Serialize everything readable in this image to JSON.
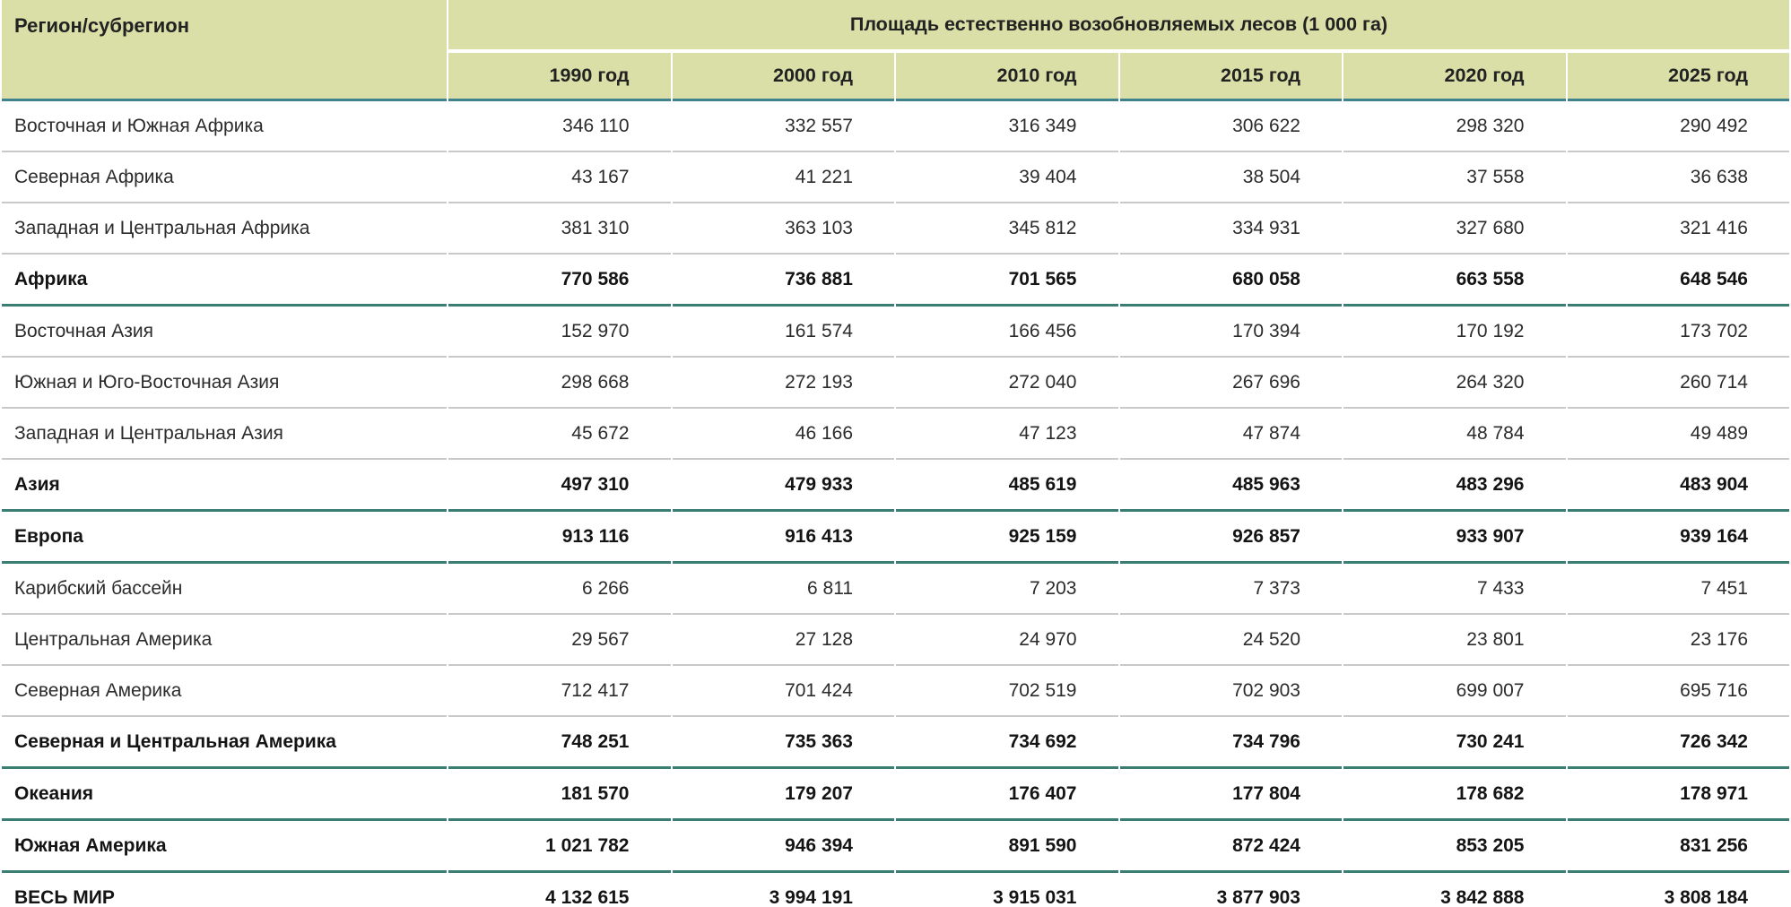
{
  "table": {
    "corner_header": "Регион/субрегион",
    "group_header": "Площадь естественно возобновляемых лесов (1 000 га)",
    "columns": [
      "1990 год",
      "2000 год",
      "2010 год",
      "2015 год",
      "2020 год",
      "2025 год"
    ],
    "rows": [
      {
        "name": "Восточная и Южная Африка",
        "bold": false,
        "values": [
          "346 110",
          "332 557",
          "316 349",
          "306 622",
          "298 320",
          "290 492"
        ]
      },
      {
        "name": "Северная Африка",
        "bold": false,
        "values": [
          "43 167",
          "41 221",
          "39 404",
          "38 504",
          "37 558",
          "36 638"
        ]
      },
      {
        "name": "Западная и Центральная Африка",
        "bold": false,
        "values": [
          "381 310",
          "363 103",
          "345 812",
          "334 931",
          "327 680",
          "321 416"
        ]
      },
      {
        "name": "Африка",
        "bold": true,
        "values": [
          "770 586",
          "736 881",
          "701 565",
          "680 058",
          "663 558",
          "648 546"
        ]
      },
      {
        "name": "Восточная Азия",
        "bold": false,
        "values": [
          "152 970",
          "161 574",
          "166 456",
          "170 394",
          "170 192",
          "173 702"
        ]
      },
      {
        "name": "Южная и Юго-Восточная Азия",
        "bold": false,
        "values": [
          "298 668",
          "272 193",
          "272 040",
          "267 696",
          "264 320",
          "260 714"
        ]
      },
      {
        "name": "Западная и Центральная Азия",
        "bold": false,
        "values": [
          "45 672",
          "46 166",
          "47 123",
          "47 874",
          "48 784",
          "49 489"
        ]
      },
      {
        "name": "Азия",
        "bold": true,
        "values": [
          "497 310",
          "479 933",
          "485 619",
          "485 963",
          "483 296",
          "483 904"
        ]
      },
      {
        "name": "Европа",
        "bold": true,
        "values": [
          "913 116",
          "916 413",
          "925 159",
          "926 857",
          "933 907",
          "939 164"
        ]
      },
      {
        "name": "Карибский бассейн",
        "bold": false,
        "values": [
          "6 266",
          "6 811",
          "7 203",
          "7 373",
          "7 433",
          "7 451"
        ]
      },
      {
        "name": "Центральная Америка",
        "bold": false,
        "values": [
          "29 567",
          "27 128",
          "24 970",
          "24 520",
          "23 801",
          "23 176"
        ]
      },
      {
        "name": "Северная Америка",
        "bold": false,
        "values": [
          "712 417",
          "701 424",
          "702 519",
          "702 903",
          "699 007",
          "695 716"
        ]
      },
      {
        "name": "Северная и Центральная Америка",
        "bold": true,
        "values": [
          "748 251",
          "735 363",
          "734 692",
          "734 796",
          "730 241",
          "726 342"
        ]
      },
      {
        "name": "Океания",
        "bold": true,
        "values": [
          "181 570",
          "179 207",
          "176 407",
          "177 804",
          "178 682",
          "178 971"
        ]
      },
      {
        "name": "Южная Америка",
        "bold": true,
        "values": [
          "1 021 782",
          "946 394",
          "891 590",
          "872 424",
          "853 205",
          "831 256"
        ]
      },
      {
        "name": "ВЕСЬ МИР",
        "bold": true,
        "values": [
          "4 132 615",
          "3 994 191",
          "3 915 031",
          "3 877 903",
          "3 842 888",
          "3 808 184"
        ]
      }
    ]
  },
  "colors": {
    "header_bg": "#d9dfa7",
    "header_rule": "#3e8290",
    "total_rule": "#3a7d72",
    "row_rule": "#c9c9c9",
    "footer_strip": "#eef0dc"
  }
}
